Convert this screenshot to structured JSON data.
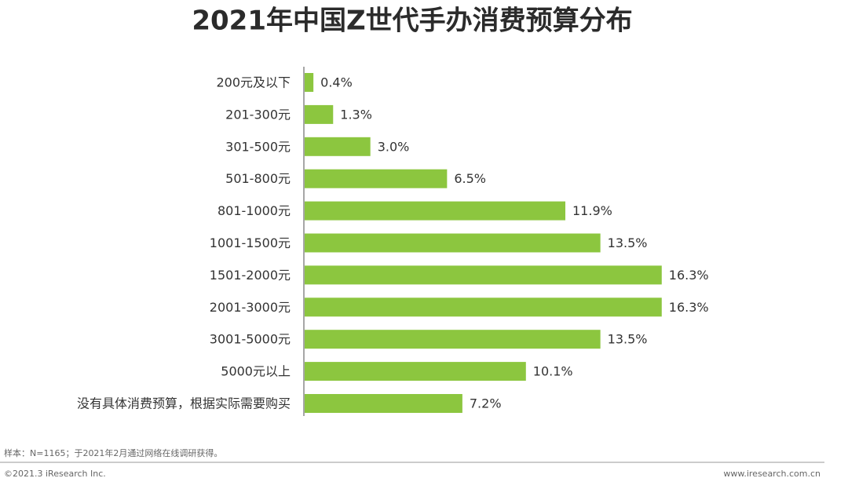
{
  "chart_data": {
    "type": "bar",
    "orientation": "horizontal",
    "title": "2021年中国Z世代手办消费预算分布",
    "categories": [
      "200元及以下",
      "201-300元",
      "301-500元",
      "501-800元",
      "801-1000元",
      "1001-1500元",
      "1501-2000元",
      "2001-3000元",
      "3001-5000元",
      "5000元以上",
      "没有具体消费预算，根据实际需要购买"
    ],
    "values": [
      0.4,
      1.3,
      3.0,
      6.5,
      11.9,
      13.5,
      16.3,
      16.3,
      13.5,
      10.1,
      7.2
    ],
    "value_labels": [
      "0.4%",
      "1.3%",
      "3.0%",
      "6.5%",
      "11.9%",
      "13.5%",
      "16.3%",
      "16.3%",
      "13.5%",
      "10.1%",
      "7.2%"
    ],
    "color": "#8cc63f"
  },
  "footer": {
    "note": "样本：N=1165；于2021年2月通过网络在线调研获得。",
    "copyright": "©2021.3 iResearch Inc.",
    "website": "www.iresearch.com.cn"
  }
}
